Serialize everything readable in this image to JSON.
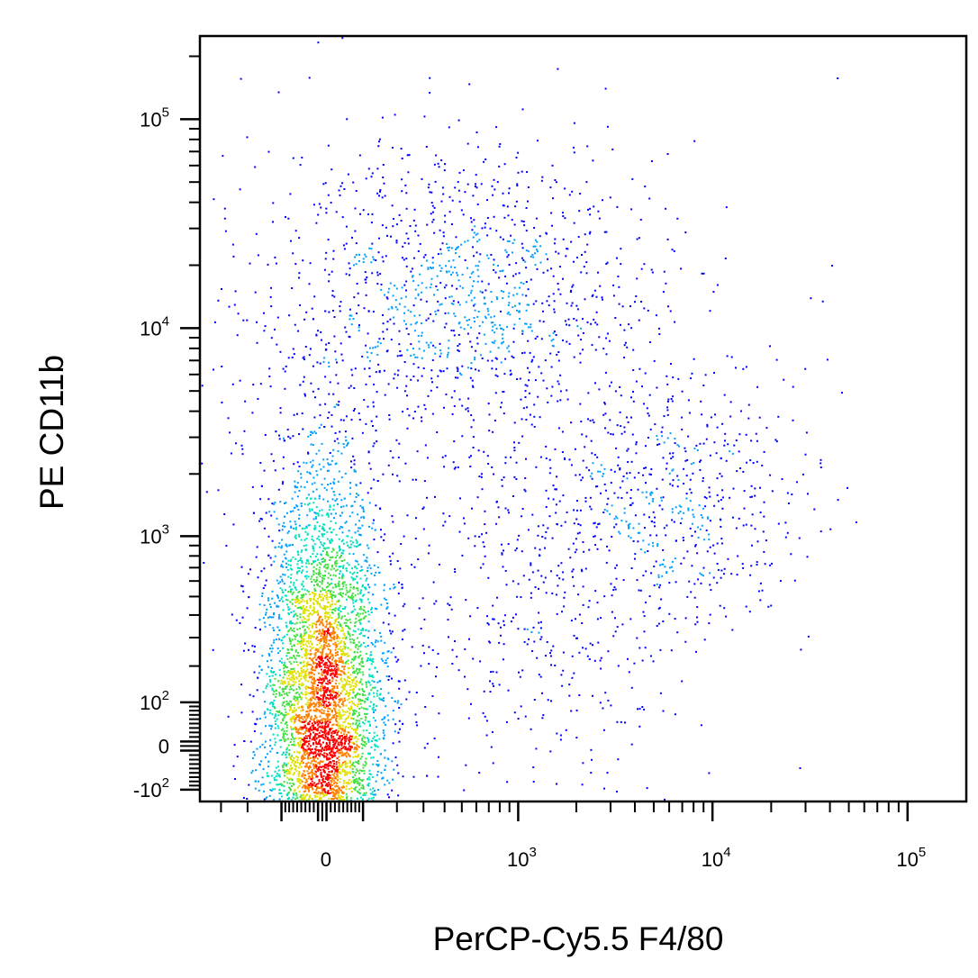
{
  "chart_data": {
    "type": "scatter",
    "title": "",
    "xlabel": "PerCP-Cy5.5  F4/80",
    "ylabel": "PE  CD11b",
    "x_scale": "biexponential",
    "y_scale": "biexponential",
    "xlim": [
      -400,
      200000
    ],
    "ylim": [
      -130,
      250000
    ],
    "x_tick_labels": [
      {
        "value": 0,
        "base": "0",
        "exp": ""
      },
      {
        "value": 1000,
        "base": "10",
        "exp": "3"
      },
      {
        "value": 10000,
        "base": "10",
        "exp": "4"
      },
      {
        "value": 100000,
        "base": "10",
        "exp": "5"
      }
    ],
    "y_tick_labels": [
      {
        "value": -100,
        "base": "-10",
        "exp": "2"
      },
      {
        "value": 0,
        "base": "0",
        "exp": ""
      },
      {
        "value": 100,
        "base": "10",
        "exp": "2"
      },
      {
        "value": 1000,
        "base": "10",
        "exp": "3"
      },
      {
        "value": 10000,
        "base": "10",
        "exp": "4"
      },
      {
        "value": 100000,
        "base": "10",
        "exp": "5"
      }
    ],
    "color_scale": [
      "#0000ff",
      "#00a0ff",
      "#00e0c0",
      "#40e040",
      "#e0e000",
      "#ff8000",
      "#ff0000"
    ],
    "populations": [
      {
        "description": "dense main cluster",
        "x_center": 0,
        "y_center": 30,
        "x_spread_decades": 0.15,
        "y_spread_decades": 0.6,
        "fraction": 0.72
      },
      {
        "description": "upper cluster",
        "x_center": 500,
        "y_center": 15000,
        "x_spread_decades": 0.5,
        "y_spread_decades": 0.35,
        "fraction": 0.12
      },
      {
        "description": "right diagonal cluster",
        "x_center": 6000,
        "y_center": 1500,
        "x_spread_decades": 0.35,
        "y_spread_decades": 0.3,
        "fraction": 0.06
      },
      {
        "description": "lower right scatter",
        "x_center": 1500,
        "y_center": 400,
        "x_spread_decades": 0.4,
        "y_spread_decades": 0.4,
        "fraction": 0.04
      },
      {
        "description": "sparse background",
        "x_center": 200,
        "y_center": 3000,
        "x_spread_decades": 0.8,
        "y_spread_decades": 0.8,
        "fraction": 0.06
      }
    ],
    "grid": false,
    "legend": "none"
  }
}
